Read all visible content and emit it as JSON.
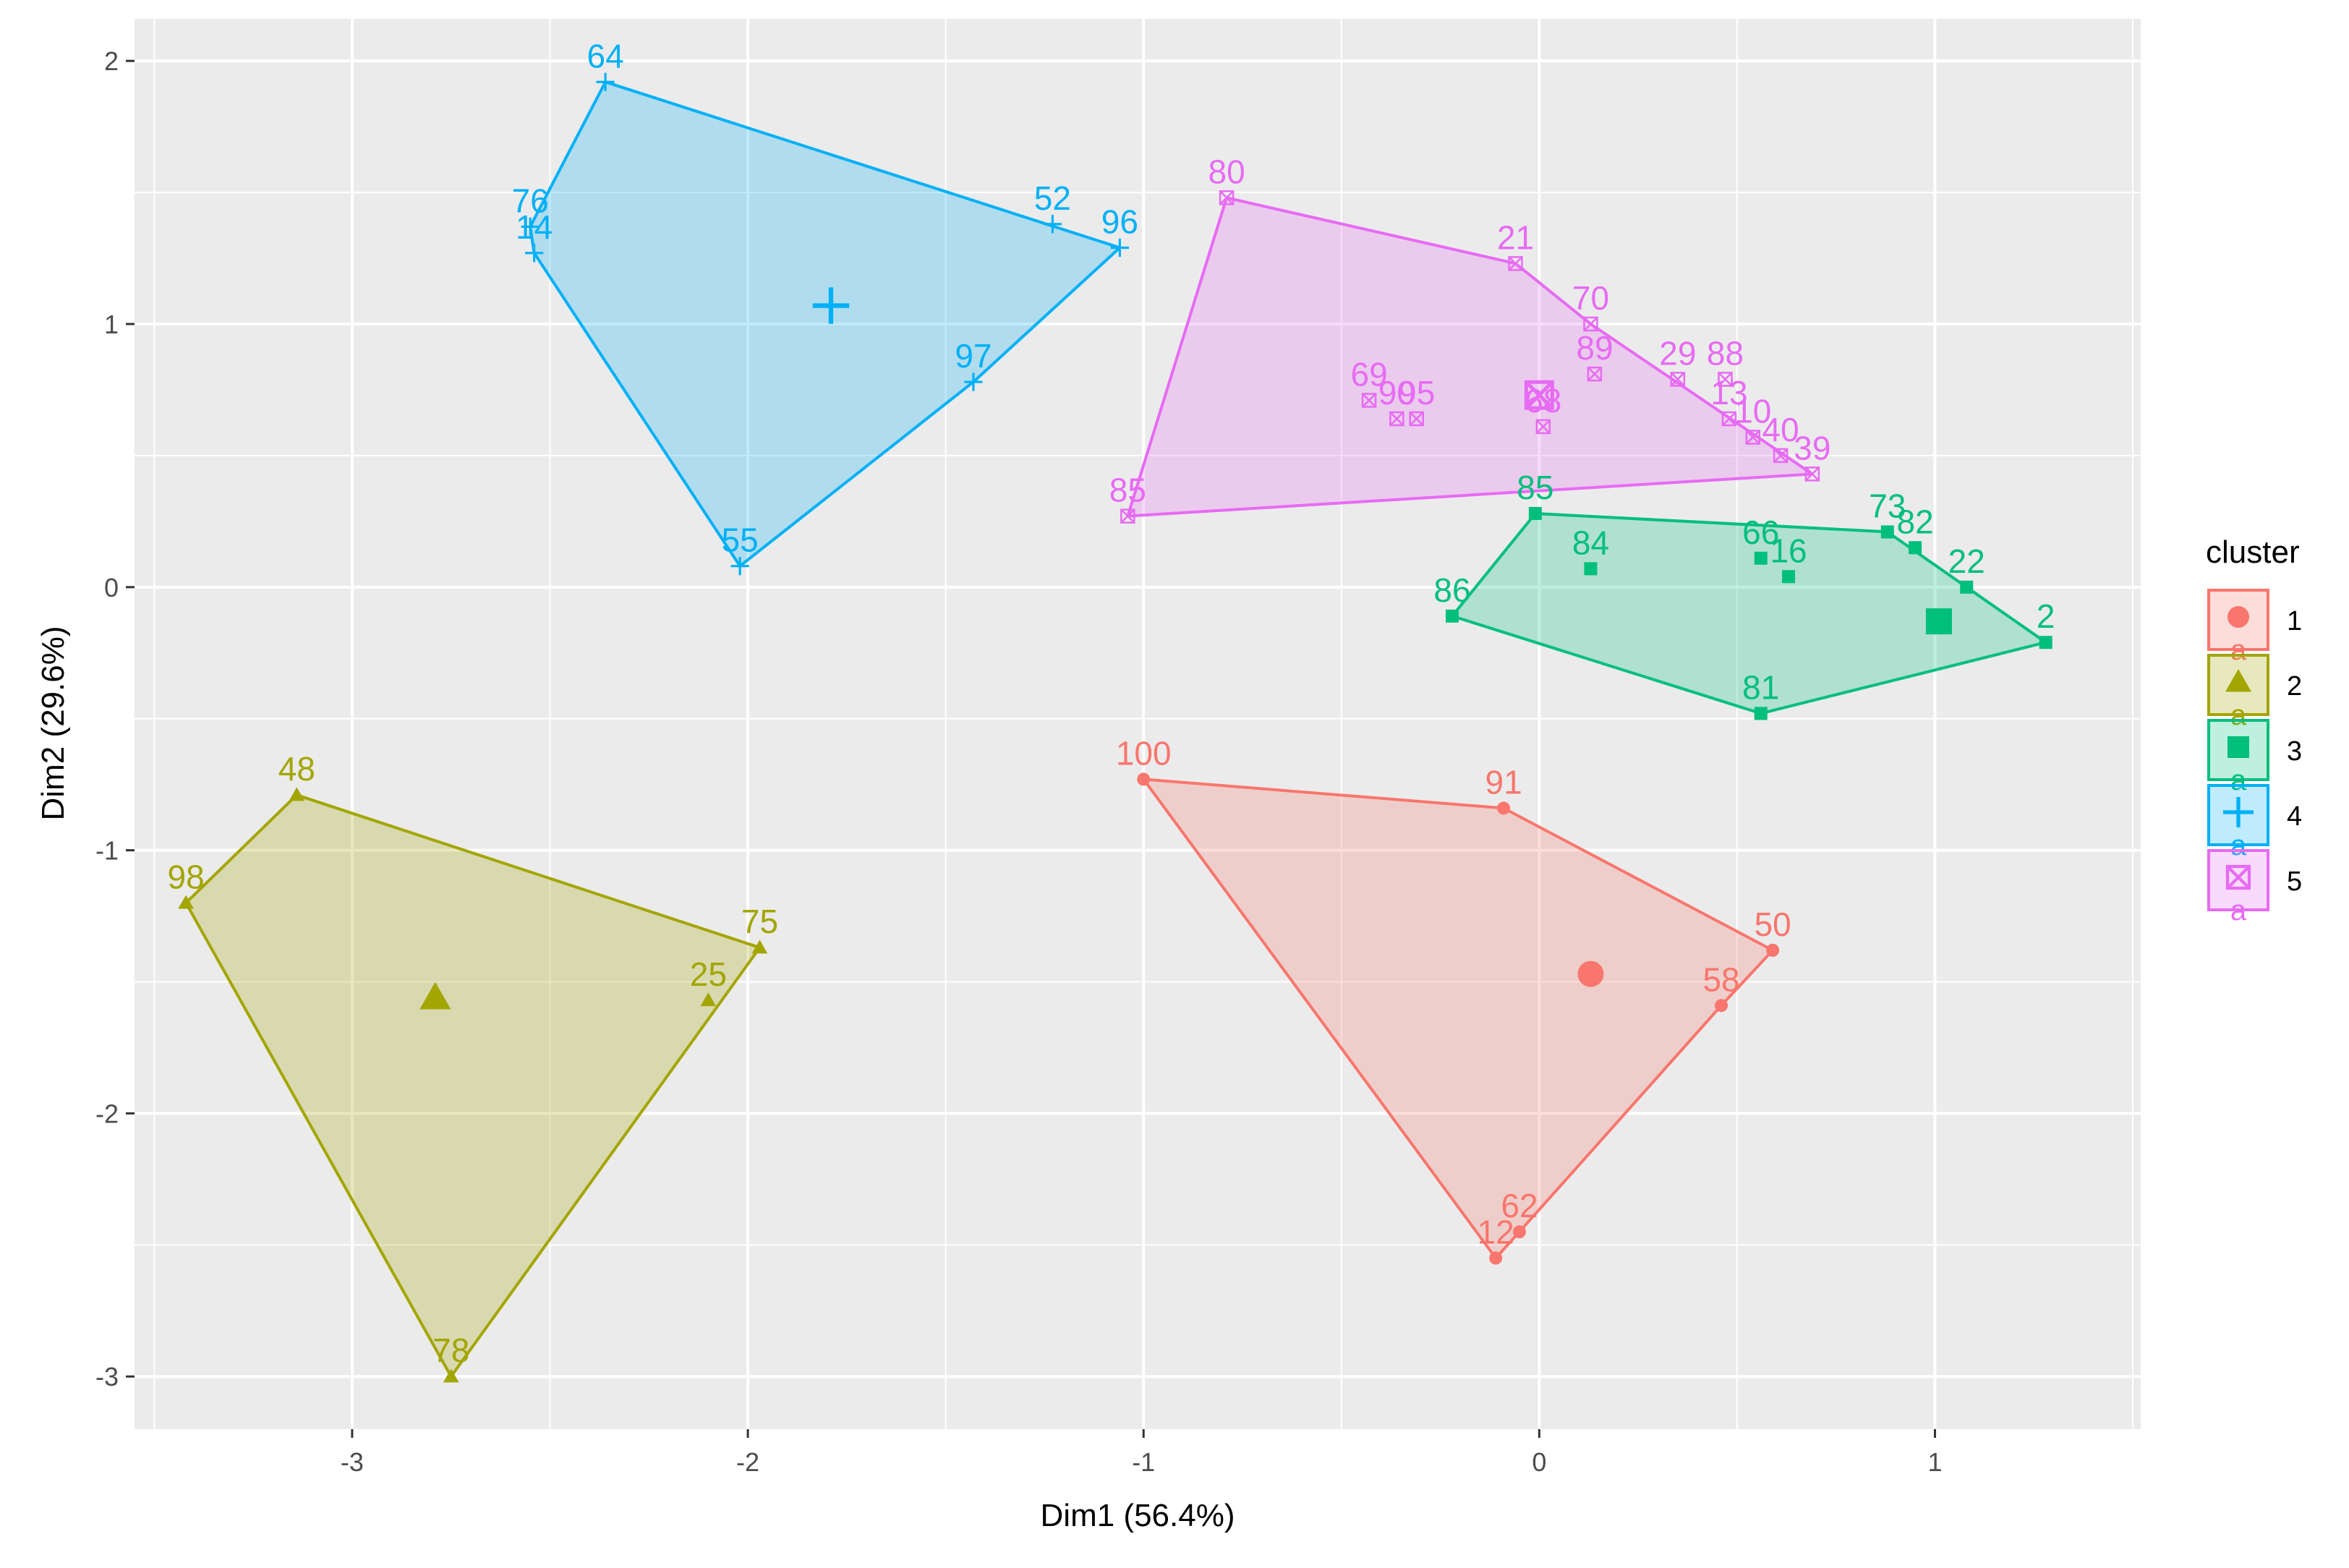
{
  "chart_data": {
    "type": "scatter",
    "xlabel": "Dim1 (56.4%)",
    "ylabel": "Dim2 (29.6%)",
    "xlim": [
      -3.55,
      1.52
    ],
    "ylim": [
      -3.2,
      2.16
    ],
    "xticks": [
      -3,
      -2,
      -1,
      0,
      1
    ],
    "yticks": [
      -3,
      -2,
      -1,
      0,
      1,
      2
    ],
    "grid": true,
    "legend": {
      "title": "cluster",
      "placement": "right",
      "key_letter": "a"
    },
    "clusters": [
      {
        "name": "1",
        "color": "#F8766D",
        "shape": "circle",
        "centroid": [
          0.13,
          -1.47
        ],
        "hull": [
          [
            -1.0,
            -0.73
          ],
          [
            -0.09,
            -0.84
          ],
          [
            0.59,
            -1.38
          ],
          [
            0.46,
            -1.59
          ],
          [
            -0.05,
            -2.45
          ],
          [
            -0.11,
            -2.55
          ]
        ],
        "points": [
          {
            "x": -1.0,
            "y": -0.73,
            "label": "100"
          },
          {
            "x": -0.09,
            "y": -0.84,
            "label": "91"
          },
          {
            "x": 0.59,
            "y": -1.38,
            "label": "50"
          },
          {
            "x": 0.46,
            "y": -1.59,
            "label": "58"
          },
          {
            "x": -0.05,
            "y": -2.45,
            "label": "62"
          },
          {
            "x": -0.11,
            "y": -2.55,
            "label": "12"
          }
        ]
      },
      {
        "name": "2",
        "color": "#A3A500",
        "shape": "triangle",
        "centroid": [
          -2.79,
          -1.56
        ],
        "hull": [
          [
            -3.14,
            -0.79
          ],
          [
            -1.97,
            -1.37
          ],
          [
            -2.75,
            -3.0
          ],
          [
            -3.42,
            -1.2
          ]
        ],
        "points": [
          {
            "x": -3.14,
            "y": -0.79,
            "label": "48"
          },
          {
            "x": -3.42,
            "y": -1.2,
            "label": "98"
          },
          {
            "x": -1.97,
            "y": -1.37,
            "label": "75"
          },
          {
            "x": -2.1,
            "y": -1.57,
            "label": "25"
          },
          {
            "x": -2.75,
            "y": -3.0,
            "label": "78"
          }
        ]
      },
      {
        "name": "3",
        "color": "#00BF7D",
        "shape": "square",
        "centroid": [
          1.01,
          -0.13
        ],
        "hull": [
          [
            -0.01,
            0.28
          ],
          [
            0.88,
            0.21
          ],
          [
            1.08,
            0.0
          ],
          [
            1.28,
            -0.21
          ],
          [
            0.56,
            -0.48
          ],
          [
            -0.22,
            -0.11
          ]
        ],
        "points": [
          {
            "x": -0.01,
            "y": 0.28,
            "label": "85"
          },
          {
            "x": 0.13,
            "y": 0.07,
            "label": "84"
          },
          {
            "x": 0.56,
            "y": 0.11,
            "label": "66"
          },
          {
            "x": 0.63,
            "y": 0.04,
            "label": "16"
          },
          {
            "x": 0.88,
            "y": 0.21,
            "label": "73"
          },
          {
            "x": 0.95,
            "y": 0.15,
            "label": "82"
          },
          {
            "x": 1.08,
            "y": 0.0,
            "label": "22"
          },
          {
            "x": -0.22,
            "y": -0.11,
            "label": "86"
          },
          {
            "x": 0.56,
            "y": -0.48,
            "label": "81"
          },
          {
            "x": 1.28,
            "y": -0.21,
            "label": "2"
          }
        ]
      },
      {
        "name": "4",
        "color": "#00B0F6",
        "shape": "plus",
        "centroid": [
          -1.79,
          1.07
        ],
        "hull": [
          [
            -2.36,
            1.92
          ],
          [
            -1.06,
            1.29
          ],
          [
            -1.43,
            0.78
          ],
          [
            -2.02,
            0.08
          ],
          [
            -2.54,
            1.27
          ],
          [
            -2.55,
            1.37
          ]
        ],
        "points": [
          {
            "x": -2.36,
            "y": 1.92,
            "label": "64"
          },
          {
            "x": -1.23,
            "y": 1.38,
            "label": "52"
          },
          {
            "x": -1.06,
            "y": 1.29,
            "label": "96"
          },
          {
            "x": -2.55,
            "y": 1.37,
            "label": "76"
          },
          {
            "x": -2.54,
            "y": 1.27,
            "label": "14"
          },
          {
            "x": -1.43,
            "y": 0.78,
            "label": "97"
          },
          {
            "x": -2.02,
            "y": 0.08,
            "label": "55"
          }
        ]
      },
      {
        "name": "5",
        "color": "#E76BF3",
        "shape": "square-x",
        "centroid": [
          0.0,
          0.73
        ],
        "hull": [
          [
            -0.79,
            1.48
          ],
          [
            -0.06,
            1.23
          ],
          [
            0.13,
            1.0
          ],
          [
            0.69,
            0.43
          ],
          [
            -1.04,
            0.27
          ]
        ],
        "points": [
          {
            "x": -0.79,
            "y": 1.48,
            "label": "80"
          },
          {
            "x": -0.06,
            "y": 1.23,
            "label": "21"
          },
          {
            "x": 0.13,
            "y": 1.0,
            "label": "70"
          },
          {
            "x": 0.14,
            "y": 0.81,
            "label": "89"
          },
          {
            "x": 0.35,
            "y": 0.79,
            "label": "29"
          },
          {
            "x": 0.47,
            "y": 0.79,
            "label": "88"
          },
          {
            "x": 0.48,
            "y": 0.64,
            "label": "13"
          },
          {
            "x": 0.54,
            "y": 0.57,
            "label": "10"
          },
          {
            "x": 0.61,
            "y": 0.5,
            "label": "40"
          },
          {
            "x": 0.69,
            "y": 0.43,
            "label": "39"
          },
          {
            "x": -0.43,
            "y": 0.71,
            "label": "69"
          },
          {
            "x": -0.36,
            "y": 0.64,
            "label": "90"
          },
          {
            "x": -0.31,
            "y": 0.64,
            "label": "95"
          },
          {
            "x": 0.01,
            "y": 0.61,
            "label": "68"
          },
          {
            "x": -1.04,
            "y": 0.27,
            "label": "85"
          }
        ]
      }
    ]
  }
}
